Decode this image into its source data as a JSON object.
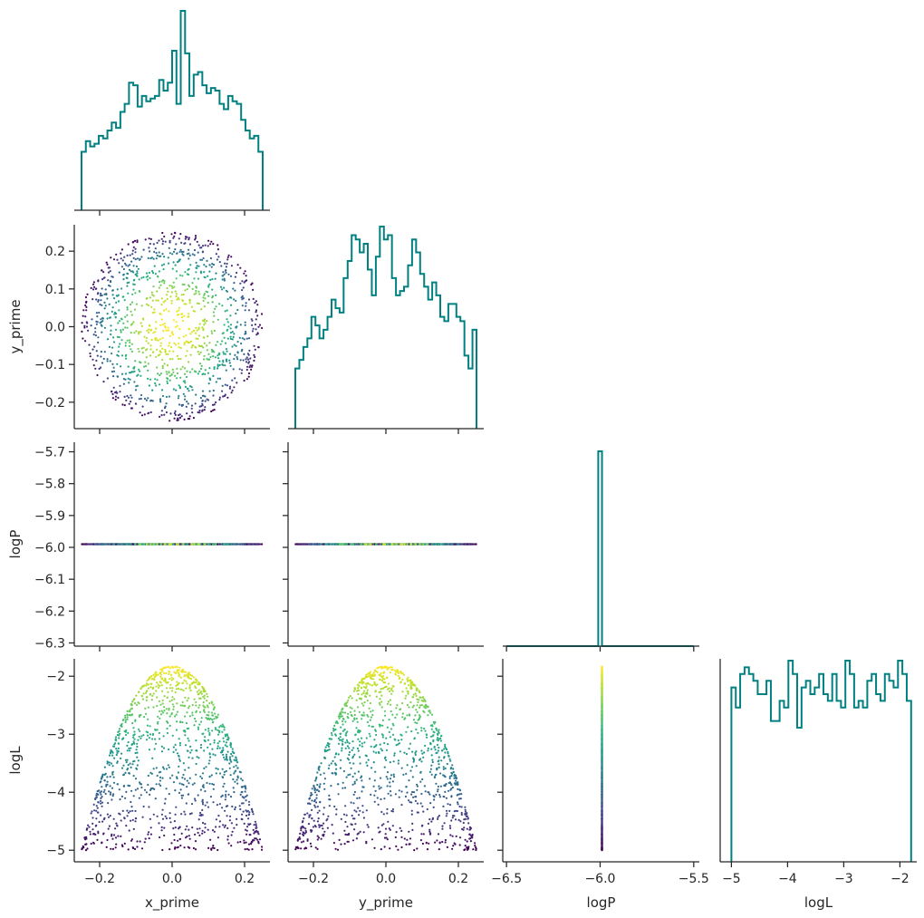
{
  "chart_data": {
    "type": "corner",
    "parameters": [
      "x_prime",
      "y_prime",
      "logP",
      "logL"
    ],
    "colormap": "viridis",
    "hist_color": "#008080",
    "axes_text": {
      "xlabels": [
        "x_prime",
        "y_prime",
        "logP",
        "logL"
      ],
      "ylabels": [
        "y_prime",
        "logP",
        "logL"
      ],
      "x_prime_ticks": [
        "−0.2",
        "0.0",
        "0.2"
      ],
      "y_prime_ticks": [
        "−0.2",
        "−0.1",
        "0.0",
        "0.1",
        "0.2"
      ],
      "y_prime_xticks": [
        "−0.2",
        "0.0",
        "0.2"
      ],
      "logP_yticks": [
        "−5.7",
        "−5.8",
        "−5.9",
        "−6.0",
        "−6.1",
        "−6.2",
        "−6.3"
      ],
      "logP_xticks": [
        "−6.5",
        "−6.0",
        "−5.5"
      ],
      "logL_yticks": [
        "−2",
        "−3",
        "−4",
        "−5"
      ],
      "logL_xticks": [
        "−5",
        "−4",
        "−3",
        "−2"
      ]
    },
    "ranges": {
      "x_prime": [
        -0.27,
        0.27
      ],
      "y_prime": [
        -0.27,
        0.27
      ],
      "logP": [
        -6.52,
        -5.47
      ],
      "logP_y": [
        -6.31,
        -5.67
      ],
      "logL": [
        -5.2,
        -1.7
      ]
    },
    "samples": {
      "count": 1200,
      "radius": 0.25,
      "logP_value": -5.99,
      "logL_peak": -1.83,
      "logL_floor": -5.0
    },
    "histograms": {
      "x_prime": {
        "range": [
          -0.25,
          0.25
        ],
        "counts": [
          22,
          26,
          24,
          25,
          28,
          27,
          30,
          33,
          31,
          37,
          40,
          48,
          47,
          39,
          43,
          41,
          42,
          43,
          49,
          45,
          48,
          60,
          40,
          75,
          59,
          43,
          51,
          52,
          47,
          44,
          46,
          45,
          40,
          38,
          43,
          41,
          40,
          34,
          30,
          27,
          28,
          22
        ]
      },
      "y_prime": {
        "range": [
          -0.25,
          0.25
        ],
        "counts": [
          14,
          16,
          19,
          21,
          26,
          24,
          21,
          23,
          26,
          30,
          28,
          27,
          35,
          39,
          45,
          44,
          41,
          43,
          37,
          31,
          40,
          47,
          44,
          45,
          35,
          31,
          32,
          33,
          38,
          44,
          41,
          36,
          33,
          30,
          34,
          31,
          26,
          25,
          29,
          29,
          26,
          25,
          17,
          14,
          23
        ]
      },
      "logP": {
        "range": [
          -6.5,
          -5.5
        ],
        "bin_edges": [
          -6.01,
          -5.99
        ],
        "peak": 1
      },
      "logL": {
        "range": [
          -5.0,
          -1.8
        ],
        "counts": [
          26,
          23,
          28,
          29,
          28,
          27,
          25,
          25,
          27,
          21,
          21,
          24,
          23,
          30,
          28,
          20,
          26,
          27,
          25,
          26,
          28,
          25,
          24,
          28,
          24,
          23,
          30,
          28,
          23,
          24,
          23,
          27,
          28,
          25,
          24,
          28,
          27,
          26,
          30,
          28,
          24
        ]
      }
    }
  }
}
